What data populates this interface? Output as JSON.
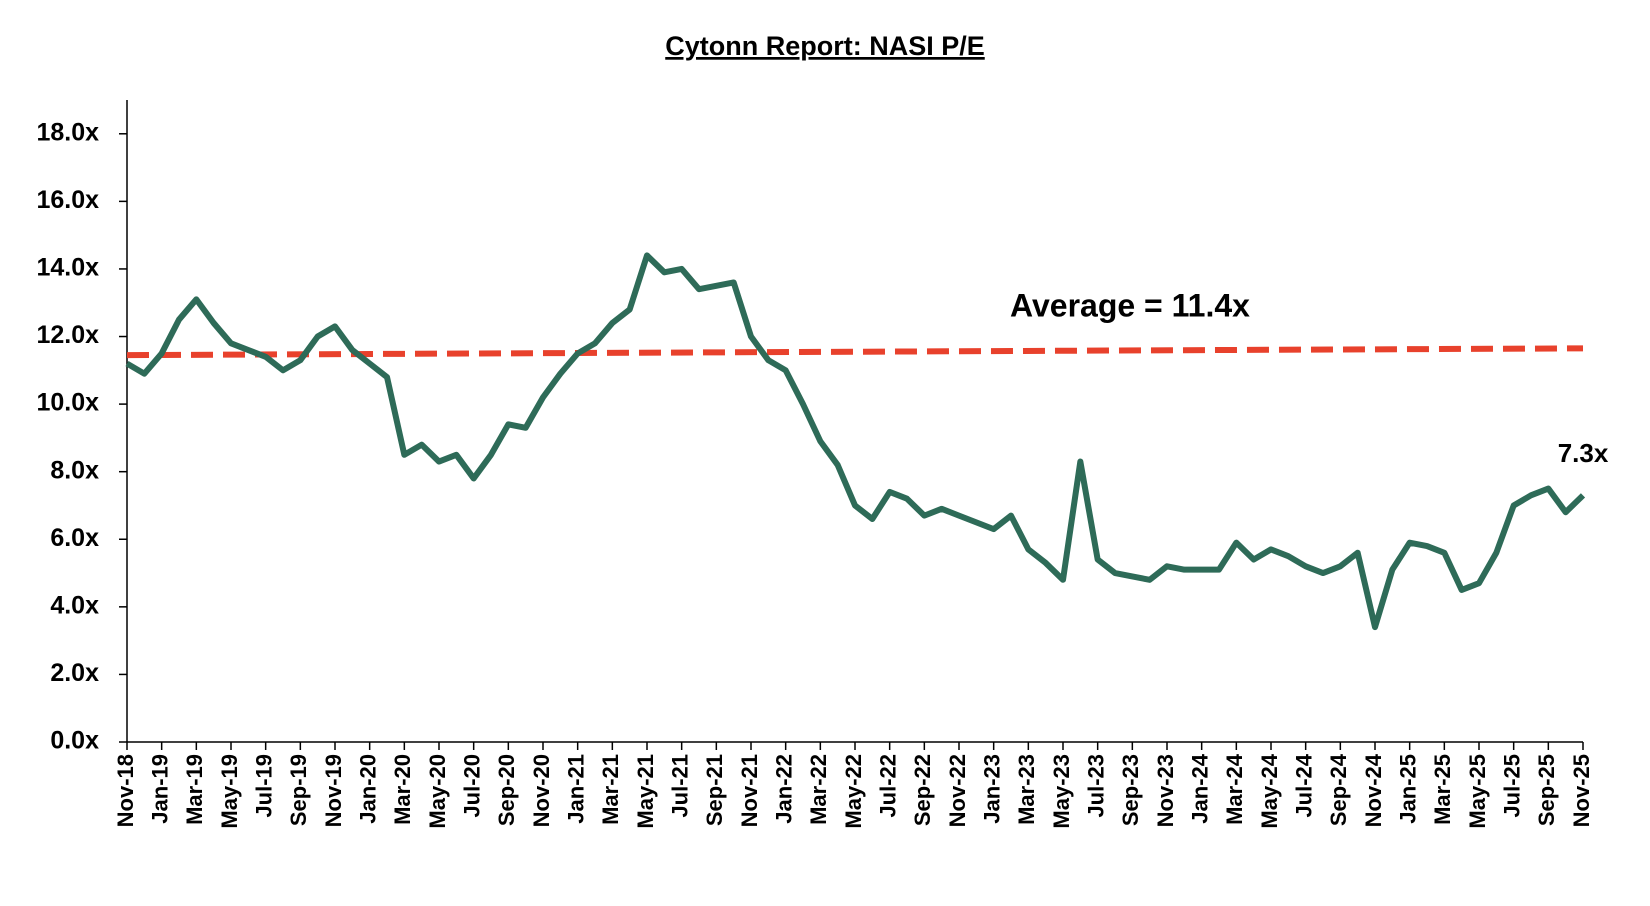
{
  "chart_data": {
    "type": "line",
    "title": "Cytonn Report: NASI P/E",
    "categories": [
      "Nov-18",
      null,
      "Jan-19",
      null,
      "Mar-19",
      null,
      "May-19",
      null,
      "Jul-19",
      null,
      "Sep-19",
      null,
      "Nov-19",
      null,
      "Jan-20",
      null,
      "Mar-20",
      null,
      "May-20",
      null,
      "Jul-20",
      null,
      "Sep-20",
      null,
      "Nov-20",
      null,
      "Jan-21",
      null,
      "Mar-21",
      null,
      "May-21",
      null,
      "Jul-21",
      null,
      "Sep-21",
      null,
      "Nov-21",
      null,
      "Jan-22",
      null,
      "Mar-22",
      null,
      "May-22",
      null,
      "Jul-22",
      null,
      "Sep-22",
      null,
      "Nov-22",
      null,
      "Jan-23",
      null,
      "Mar-23",
      null,
      "May-23",
      null,
      "Jul-23",
      null,
      "Sep-23",
      null,
      "Nov-23",
      null,
      "Jan-24",
      null,
      "Mar-24",
      null,
      "May-24",
      null,
      "Jul-24",
      null,
      "Sep-24",
      null,
      "Nov-24",
      null,
      "Jan-25",
      null,
      "Mar-25",
      null,
      "May-25",
      null,
      "Jul-25",
      null,
      "Sep-25",
      null,
      "Nov-25"
    ],
    "series": [
      {
        "color": "#2e6b58",
        "values": [
          11.2,
          10.9,
          11.5,
          12.5,
          13.1,
          12.4,
          11.8,
          11.6,
          11.4,
          11.0,
          11.3,
          12.0,
          12.3,
          11.6,
          11.2,
          10.8,
          8.5,
          8.8,
          8.3,
          8.5,
          7.8,
          8.5,
          9.4,
          9.3,
          10.2,
          10.9,
          11.5,
          11.8,
          12.4,
          12.8,
          14.4,
          13.9,
          14.0,
          13.4,
          13.5,
          13.6,
          12.0,
          11.3,
          11.0,
          10.0,
          8.9,
          8.2,
          7.0,
          6.6,
          7.4,
          7.2,
          6.7,
          6.9,
          6.7,
          6.5,
          6.3,
          6.7,
          5.7,
          5.3,
          4.8,
          8.3,
          5.4,
          5.0,
          4.9,
          4.8,
          5.2,
          5.1,
          5.1,
          5.1,
          5.9,
          5.4,
          5.7,
          5.5,
          5.2,
          5.0,
          5.2,
          5.6,
          3.4,
          5.1,
          5.9,
          5.8,
          5.6,
          4.5,
          4.7,
          5.6,
          7.0,
          7.3,
          7.5,
          6.8,
          7.3
        ],
        "value_labels": [
          null,
          null,
          null,
          null,
          null,
          null,
          null,
          null,
          null,
          null,
          null,
          null,
          null,
          null,
          null,
          null,
          null,
          null,
          null,
          null,
          null,
          null,
          null,
          null,
          null,
          null,
          null,
          null,
          null,
          null,
          null,
          null,
          null,
          null,
          null,
          null,
          null,
          null,
          null,
          null,
          null,
          null,
          null,
          null,
          null,
          null,
          null,
          null,
          null,
          null,
          null,
          null,
          null,
          null,
          null,
          null,
          null,
          null,
          null,
          null,
          null,
          null,
          null,
          null,
          null,
          null,
          null,
          null,
          null,
          null,
          null,
          null,
          null,
          null,
          null,
          null,
          null,
          null,
          null,
          null,
          null,
          null,
          null,
          null,
          "7.3x"
        ]
      }
    ],
    "average_line": {
      "label": "Average = 11.4x",
      "color": "#e8412c",
      "values": [
        11.45,
        11.65
      ]
    },
    "ylim": [
      0,
      19
    ],
    "yticks": [
      {
        "value": 0,
        "label": "0.0x"
      },
      {
        "value": 2,
        "label": "2.0x"
      },
      {
        "value": 4,
        "label": "4.0x"
      },
      {
        "value": 6,
        "label": "6.0x"
      },
      {
        "value": 8,
        "label": "8.0x"
      },
      {
        "value": 10,
        "label": "10.0x"
      },
      {
        "value": 12,
        "label": "12.0x"
      },
      {
        "value": 14,
        "label": "14.0x"
      },
      {
        "value": 16,
        "label": "16.0x"
      },
      {
        "value": 18,
        "label": "18.0x"
      }
    ],
    "grid": false
  }
}
